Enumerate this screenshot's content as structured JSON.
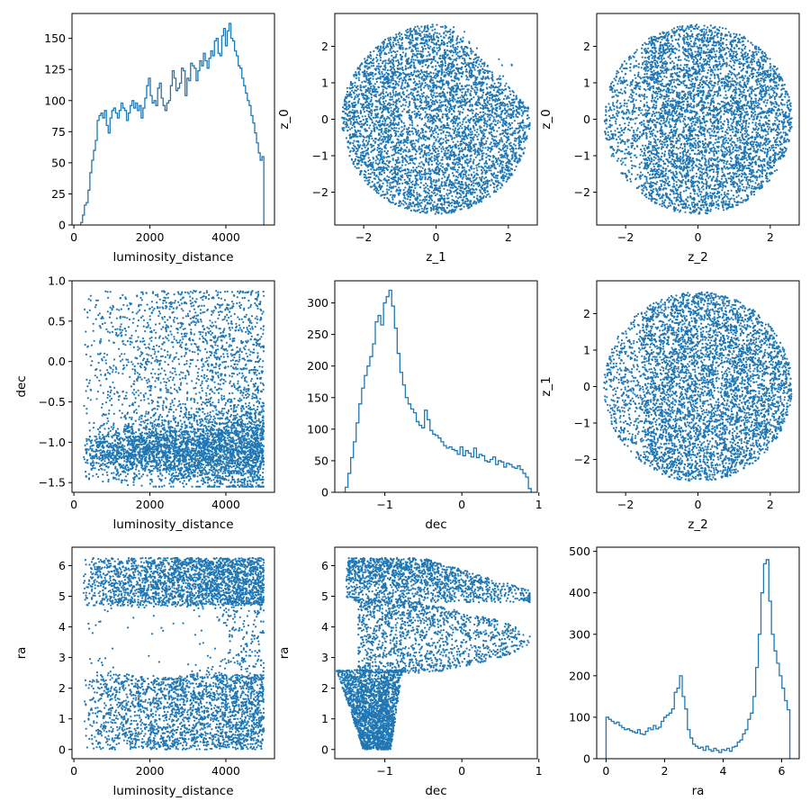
{
  "figure": {
    "background": "#ffffff",
    "mark_color": "#1f77b4",
    "layout": "3x3 corner plot"
  },
  "chart_data": [
    {
      "type": "histogram",
      "xlabel": "luminosity_distance",
      "ylabel": "",
      "xlim": [
        -50,
        5280
      ],
      "ylim": [
        0,
        170
      ],
      "xticks": [
        0,
        2000,
        4000
      ],
      "yticks": [
        0,
        25,
        50,
        75,
        100,
        125,
        150
      ],
      "bin_range": [
        180,
        5000
      ],
      "counts": [
        2,
        8,
        16,
        18,
        28,
        42,
        52,
        60,
        68,
        84,
        88,
        90,
        86,
        92,
        80,
        74,
        86,
        92,
        94,
        90,
        86,
        92,
        98,
        94,
        92,
        84,
        90,
        96,
        100,
        94,
        98,
        92,
        96,
        86,
        94,
        102,
        112,
        118,
        104,
        98,
        100,
        96,
        110,
        114,
        102,
        96,
        92,
        98,
        100,
        112,
        124,
        118,
        108,
        110,
        114,
        126,
        124,
        104,
        118,
        116,
        130,
        128,
        126,
        116,
        124,
        132,
        128,
        138,
        132,
        126,
        134,
        140,
        136,
        148,
        150,
        138,
        136,
        152,
        158,
        144,
        156,
        162,
        150,
        148,
        140,
        136,
        128,
        126,
        118,
        112,
        106,
        100,
        96,
        88,
        82,
        74,
        66,
        58,
        52,
        55
      ]
    },
    {
      "type": "scatter",
      "xlabel": "z_1",
      "ylabel": "z_0",
      "xlim": [
        -2.8,
        2.8
      ],
      "ylim": [
        -2.9,
        2.9
      ],
      "xticks": [
        -2,
        0,
        2
      ],
      "yticks": [
        -2,
        -1,
        0,
        1,
        2
      ],
      "n_points": 5000,
      "distribution": "disk of radius ~2.6 centered at origin, slightly truncated at top-right"
    },
    {
      "type": "scatter",
      "xlabel": "z_2",
      "ylabel": "z_0",
      "xlim": [
        -2.8,
        2.8
      ],
      "ylim": [
        -2.9,
        2.9
      ],
      "xticks": [
        -2,
        0,
        2
      ],
      "yticks": [
        -2,
        -1,
        0,
        1,
        2
      ],
      "n_points": 5000,
      "distribution": "disk of radius ~2.6 centered at origin"
    },
    {
      "type": "scatter",
      "xlabel": "luminosity_distance",
      "ylabel": "dec",
      "xlim": [
        -50,
        5280
      ],
      "ylim": [
        -1.62,
        1.0
      ],
      "xticks": [
        0,
        2000,
        4000
      ],
      "yticks": [
        -1.5,
        -1.0,
        -0.5,
        0.0,
        0.5,
        1.0
      ],
      "ytick_labels": [
        "−1.5",
        "−1.0",
        "−0.5",
        "0.0",
        "0.5",
        "1.0"
      ],
      "n_points": 5000,
      "distribution": "dense band near dec -1.1 growing with distance, sparse above"
    },
    {
      "type": "histogram",
      "xlabel": "dec",
      "ylabel": "",
      "xlim": [
        -1.65,
        0.98
      ],
      "ylim": [
        0,
        335
      ],
      "xticks": [
        -1,
        0,
        1
      ],
      "yticks": [
        0,
        50,
        100,
        150,
        200,
        250,
        300
      ],
      "bin_range": [
        -1.55,
        0.9
      ],
      "counts": [
        0,
        8,
        30,
        55,
        80,
        110,
        140,
        165,
        185,
        200,
        215,
        235,
        270,
        280,
        265,
        300,
        310,
        320,
        295,
        260,
        220,
        190,
        170,
        150,
        140,
        132,
        126,
        112,
        106,
        102,
        130,
        115,
        98,
        92,
        90,
        86,
        80,
        74,
        70,
        72,
        68,
        66,
        60,
        72,
        58,
        66,
        62,
        56,
        70,
        55,
        60,
        58,
        50,
        48,
        52,
        56,
        44,
        50,
        48,
        40,
        46,
        44,
        40,
        38,
        42,
        36,
        30,
        24,
        6
      ]
    },
    {
      "type": "scatter",
      "xlabel": "z_2",
      "ylabel": "z_1",
      "xlim": [
        -2.8,
        2.8
      ],
      "ylim": [
        -2.9,
        2.9
      ],
      "xticks": [
        -2,
        0,
        2
      ],
      "yticks": [
        -2,
        -1,
        0,
        1,
        2
      ],
      "n_points": 5000,
      "distribution": "disk of radius ~2.6 centered at origin"
    },
    {
      "type": "scatter",
      "xlabel": "luminosity_distance",
      "ylabel": "ra",
      "xlim": [
        -50,
        5280
      ],
      "ylim": [
        -0.3,
        6.6
      ],
      "xticks": [
        0,
        2000,
        4000
      ],
      "yticks": [
        0,
        1,
        2,
        3,
        4,
        5,
        6
      ],
      "n_points": 5000,
      "distribution": "two horizontal bands near ra 0-2.4 and 4.6-6.2 with an empty hole near ra 3-4 at mid distance"
    },
    {
      "type": "scatter",
      "xlabel": "dec",
      "ylabel": "ra",
      "xlim": [
        -1.65,
        0.98
      ],
      "ylim": [
        -0.3,
        6.6
      ],
      "xticks": [
        -1,
        0,
        1
      ],
      "yticks": [
        0,
        1,
        2,
        3,
        4,
        5,
        6
      ],
      "n_points": 5000,
      "distribution": "dense columns near dec -1.2 plus an upper arc reaching dec 0.9 at ra 4.2"
    },
    {
      "type": "histogram",
      "xlabel": "ra",
      "ylabel": "",
      "xlim": [
        -0.32,
        6.6
      ],
      "ylim": [
        0,
        510
      ],
      "xticks": [
        0,
        2,
        4,
        6
      ],
      "yticks": [
        0,
        100,
        200,
        300,
        400,
        500
      ],
      "bin_range": [
        0,
        6.28
      ],
      "counts": [
        100,
        95,
        90,
        85,
        88,
        80,
        75,
        70,
        72,
        68,
        65,
        62,
        70,
        60,
        58,
        66,
        74,
        70,
        80,
        72,
        76,
        90,
        100,
        105,
        110,
        120,
        160,
        170,
        200,
        150,
        120,
        70,
        50,
        35,
        30,
        25,
        28,
        20,
        30,
        22,
        18,
        25,
        20,
        15,
        22,
        20,
        25,
        18,
        28,
        30,
        40,
        45,
        60,
        70,
        95,
        110,
        150,
        220,
        300,
        400,
        470,
        480,
        380,
        300,
        260,
        230,
        200,
        170,
        140,
        118
      ]
    }
  ]
}
